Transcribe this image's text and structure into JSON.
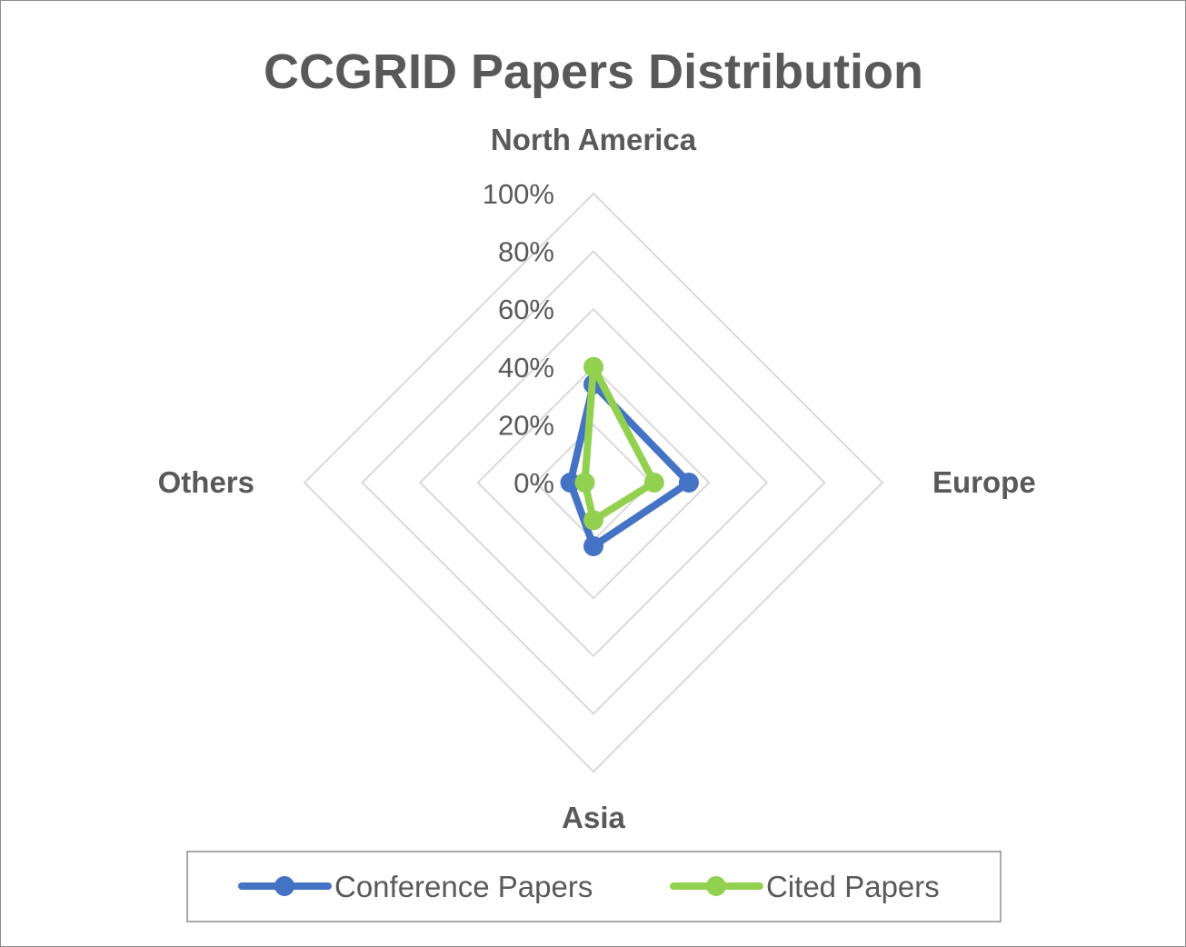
{
  "chart_data": {
    "type": "radar",
    "title": "CCGRID Papers Distribution",
    "categories": [
      "North America",
      "Europe",
      "Asia",
      "Others"
    ],
    "radial_ticks": [
      "0%",
      "20%",
      "40%",
      "60%",
      "80%",
      "100%"
    ],
    "rlim": [
      0,
      100
    ],
    "grid": true,
    "legend": {
      "position": "bottom"
    },
    "series": [
      {
        "name": "Conference Papers",
        "color": "#4472c4",
        "values": [
          34,
          33,
          22,
          8
        ]
      },
      {
        "name": "Cited Papers",
        "color": "#92d050",
        "values": [
          40,
          21,
          13,
          3
        ]
      }
    ]
  }
}
